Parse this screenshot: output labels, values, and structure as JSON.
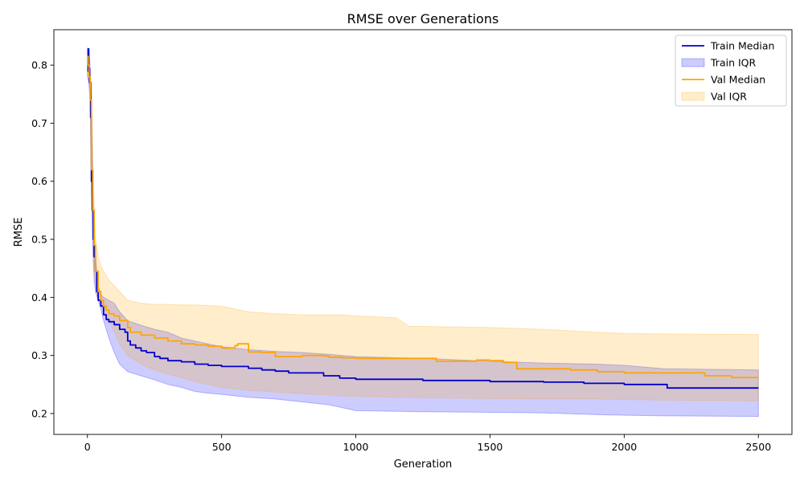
{
  "chart_data": {
    "type": "line",
    "title": "RMSE over Generations",
    "xlabel": "Generation",
    "ylabel": "RMSE",
    "xlim": [
      -125,
      2625
    ],
    "ylim": [
      0.164,
      0.861
    ],
    "xticks": [
      0,
      500,
      1000,
      1500,
      2000,
      2500
    ],
    "yticks": [
      0.2,
      0.3,
      0.4,
      0.5,
      0.6,
      0.7,
      0.8
    ],
    "xtick_labels": [
      "0",
      "500",
      "1000",
      "1500",
      "2000",
      "2500"
    ],
    "ytick_labels": [
      "0.2",
      "0.3",
      "0.4",
      "0.5",
      "0.6",
      "0.7",
      "0.8"
    ],
    "grid": false,
    "legend_position": "top-right",
    "legend": [
      "Train Median",
      "Train IQR",
      "Val Median",
      "Val IQR"
    ],
    "colors": {
      "train": "#0000cc",
      "train_fill": "#0000ff",
      "val": "#ffa500",
      "val_fill": "#ffa500"
    },
    "series": [
      {
        "name": "Train Median",
        "kind": "line",
        "color": "#0000cc",
        "x": [
          0,
          3,
          5,
          8,
          12,
          15,
          18,
          22,
          25,
          30,
          35,
          40,
          50,
          60,
          70,
          80,
          100,
          120,
          140,
          150,
          160,
          180,
          200,
          220,
          250,
          270,
          300,
          350,
          400,
          450,
          500,
          600,
          650,
          700,
          750,
          880,
          940,
          1000,
          1250,
          1500,
          1700,
          1850,
          2000,
          2150,
          2160,
          2500
        ],
        "y": [
          0.79,
          0.828,
          0.795,
          0.77,
          0.71,
          0.6,
          0.55,
          0.5,
          0.47,
          0.445,
          0.41,
          0.395,
          0.385,
          0.37,
          0.362,
          0.358,
          0.353,
          0.345,
          0.34,
          0.325,
          0.318,
          0.313,
          0.308,
          0.305,
          0.298,
          0.295,
          0.291,
          0.289,
          0.285,
          0.283,
          0.281,
          0.278,
          0.275,
          0.273,
          0.27,
          0.265,
          0.261,
          0.259,
          0.257,
          0.255,
          0.254,
          0.252,
          0.25,
          0.25,
          0.244,
          0.244
        ]
      },
      {
        "name": "Train IQR",
        "kind": "band",
        "color": "#0000ff",
        "x": [
          0,
          5,
          10,
          15,
          20,
          25,
          30,
          40,
          50,
          60,
          80,
          100,
          120,
          150,
          200,
          250,
          300,
          350,
          400,
          450,
          500,
          600,
          700,
          800,
          900,
          950,
          1000,
          1250,
          1500,
          1700,
          1900,
          2000,
          2150,
          2500
        ],
        "low": [
          0.78,
          0.77,
          0.74,
          0.58,
          0.48,
          0.43,
          0.41,
          0.395,
          0.38,
          0.36,
          0.33,
          0.305,
          0.285,
          0.272,
          0.265,
          0.258,
          0.25,
          0.245,
          0.238,
          0.235,
          0.233,
          0.228,
          0.225,
          0.22,
          0.215,
          0.21,
          0.205,
          0.203,
          0.202,
          0.201,
          0.198,
          0.197,
          0.196,
          0.195
        ],
        "high": [
          0.83,
          0.825,
          0.8,
          0.74,
          0.6,
          0.52,
          0.47,
          0.42,
          0.405,
          0.4,
          0.395,
          0.39,
          0.375,
          0.36,
          0.352,
          0.345,
          0.34,
          0.33,
          0.325,
          0.32,
          0.315,
          0.31,
          0.307,
          0.305,
          0.302,
          0.3,
          0.298,
          0.295,
          0.29,
          0.287,
          0.285,
          0.283,
          0.277,
          0.275
        ]
      },
      {
        "name": "Val Median",
        "kind": "line",
        "color": "#ffa500",
        "x": [
          0,
          3,
          6,
          10,
          15,
          20,
          25,
          30,
          40,
          50,
          60,
          70,
          80,
          100,
          120,
          150,
          160,
          200,
          250,
          300,
          350,
          400,
          450,
          500,
          550,
          560,
          600,
          650,
          700,
          750,
          800,
          880,
          900,
          950,
          1000,
          1100,
          1280,
          1300,
          1400,
          1450,
          1500,
          1550,
          1600,
          1800,
          1900,
          2000,
          2150,
          2300,
          2400,
          2500
        ],
        "y": [
          0.815,
          0.8,
          0.78,
          0.74,
          0.62,
          0.55,
          0.49,
          0.445,
          0.41,
          0.395,
          0.385,
          0.378,
          0.372,
          0.368,
          0.36,
          0.348,
          0.34,
          0.335,
          0.33,
          0.325,
          0.32,
          0.318,
          0.316,
          0.313,
          0.317,
          0.32,
          0.306,
          0.305,
          0.298,
          0.298,
          0.3,
          0.299,
          0.297,
          0.296,
          0.295,
          0.295,
          0.295,
          0.29,
          0.29,
          0.292,
          0.291,
          0.288,
          0.277,
          0.275,
          0.272,
          0.27,
          0.27,
          0.265,
          0.262,
          0.262
        ]
      },
      {
        "name": "Val IQR",
        "kind": "band",
        "color": "#ffa500",
        "x": [
          0,
          5,
          10,
          15,
          20,
          25,
          30,
          40,
          50,
          60,
          80,
          100,
          120,
          150,
          200,
          250,
          300,
          350,
          400,
          450,
          500,
          600,
          700,
          800,
          900,
          950,
          1000,
          1150,
          1200,
          1250,
          1500,
          1700,
          1900,
          2000,
          2150,
          2500
        ],
        "low": [
          0.79,
          0.78,
          0.75,
          0.62,
          0.52,
          0.45,
          0.42,
          0.4,
          0.39,
          0.38,
          0.36,
          0.34,
          0.32,
          0.3,
          0.285,
          0.275,
          0.268,
          0.262,
          0.255,
          0.25,
          0.245,
          0.24,
          0.237,
          0.234,
          0.232,
          0.23,
          0.23,
          0.228,
          0.228,
          0.227,
          0.226,
          0.225,
          0.225,
          0.224,
          0.223,
          0.222
        ],
        "high": [
          0.82,
          0.81,
          0.79,
          0.75,
          0.65,
          0.56,
          0.5,
          0.47,
          0.455,
          0.445,
          0.43,
          0.42,
          0.41,
          0.395,
          0.39,
          0.388,
          0.388,
          0.387,
          0.387,
          0.386,
          0.385,
          0.375,
          0.372,
          0.37,
          0.37,
          0.37,
          0.368,
          0.365,
          0.35,
          0.35,
          0.348,
          0.345,
          0.34,
          0.338,
          0.337,
          0.336
        ]
      }
    ]
  }
}
